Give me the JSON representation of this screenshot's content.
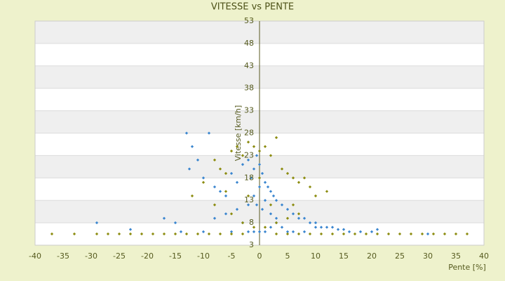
{
  "chart_data": {
    "type": "scatter",
    "title": "VITESSE vs PENTE",
    "xlabel": "Pente [%]",
    "ylabel": "Vitesse [km/h]",
    "xlim": [
      -40,
      40
    ],
    "xticks": [
      -40,
      -35,
      -30,
      -25,
      -20,
      -15,
      -10,
      -5,
      0,
      5,
      10,
      15,
      20,
      25,
      30,
      35,
      40
    ],
    "ylim": [
      3,
      53
    ],
    "yticks": [
      3,
      8,
      13,
      18,
      23,
      28,
      33,
      38,
      43,
      48,
      53
    ],
    "grid": true,
    "series": [
      {
        "color": "#3b86cf",
        "x": [
          -13,
          -12,
          -11,
          -9,
          -12.5,
          -10,
          -8,
          -7,
          -6,
          -5,
          -4,
          -3,
          -2,
          -1.5,
          -1,
          -0.5,
          0,
          0.5,
          1,
          1.5,
          2,
          2.5,
          3,
          4,
          5,
          6,
          7,
          8,
          9,
          10,
          11,
          12,
          13,
          14,
          15,
          16,
          18,
          20,
          21,
          -15,
          -17,
          -23,
          -29,
          -2,
          -1,
          0,
          1,
          2,
          3,
          -3,
          -4,
          -6,
          -8,
          4,
          6,
          8,
          0,
          -1,
          1,
          2,
          -2,
          0.5,
          -0.5,
          3,
          -5,
          5,
          10,
          -10,
          -14,
          30
        ],
        "values": [
          28,
          25,
          22,
          28,
          20,
          18,
          16,
          15,
          14,
          19,
          17,
          21,
          22,
          18,
          20,
          23,
          21,
          19,
          17,
          16,
          15,
          14,
          13,
          12,
          11,
          10,
          9,
          9,
          8,
          8,
          7,
          7,
          7,
          6.5,
          6.5,
          6,
          6,
          6,
          6.5,
          8,
          9,
          6.5,
          8,
          12,
          14,
          16,
          13,
          10,
          9,
          8,
          11,
          10,
          9,
          7,
          6,
          6,
          6,
          6,
          6,
          7,
          6,
          11,
          12,
          8,
          6,
          6,
          7,
          6,
          6,
          5.5
        ]
      },
      {
        "color": "#8c8c10",
        "x": [
          -37,
          -33,
          -29,
          -27,
          -25,
          -23,
          -21,
          -19,
          -17,
          -15,
          -13,
          -11,
          -9,
          -7,
          -5,
          -3,
          3,
          5,
          7,
          9,
          11,
          13,
          15,
          17,
          19,
          21,
          23,
          25,
          27,
          29,
          31,
          33,
          35,
          37,
          -8,
          -7,
          -6,
          -5,
          -4,
          -3,
          -2,
          -1,
          0,
          1,
          2,
          3,
          4,
          5,
          6,
          7,
          8,
          9,
          10,
          12,
          -10,
          -12,
          -8,
          -5,
          -3,
          -1,
          1,
          3,
          5,
          7,
          -6,
          6,
          0,
          -2,
          2
        ],
        "values": [
          5.5,
          5.5,
          5.5,
          5.5,
          5.5,
          5.5,
          5.5,
          5.5,
          5.5,
          5.5,
          5.5,
          5.5,
          5.5,
          5.5,
          5.5,
          5.5,
          5.5,
          5.5,
          5.5,
          5.5,
          5.5,
          5.5,
          5.5,
          5.5,
          5.5,
          5.5,
          5.5,
          5.5,
          5.5,
          5.5,
          5.5,
          5.5,
          5.5,
          5.5,
          22,
          20,
          19,
          24,
          25,
          23,
          26,
          25,
          24,
          25,
          23,
          27,
          20,
          19,
          18,
          17,
          18,
          16,
          14,
          15,
          17,
          14,
          12,
          10,
          8,
          7,
          7,
          8,
          9,
          10,
          15,
          12,
          18,
          14,
          12
        ]
      }
    ]
  }
}
